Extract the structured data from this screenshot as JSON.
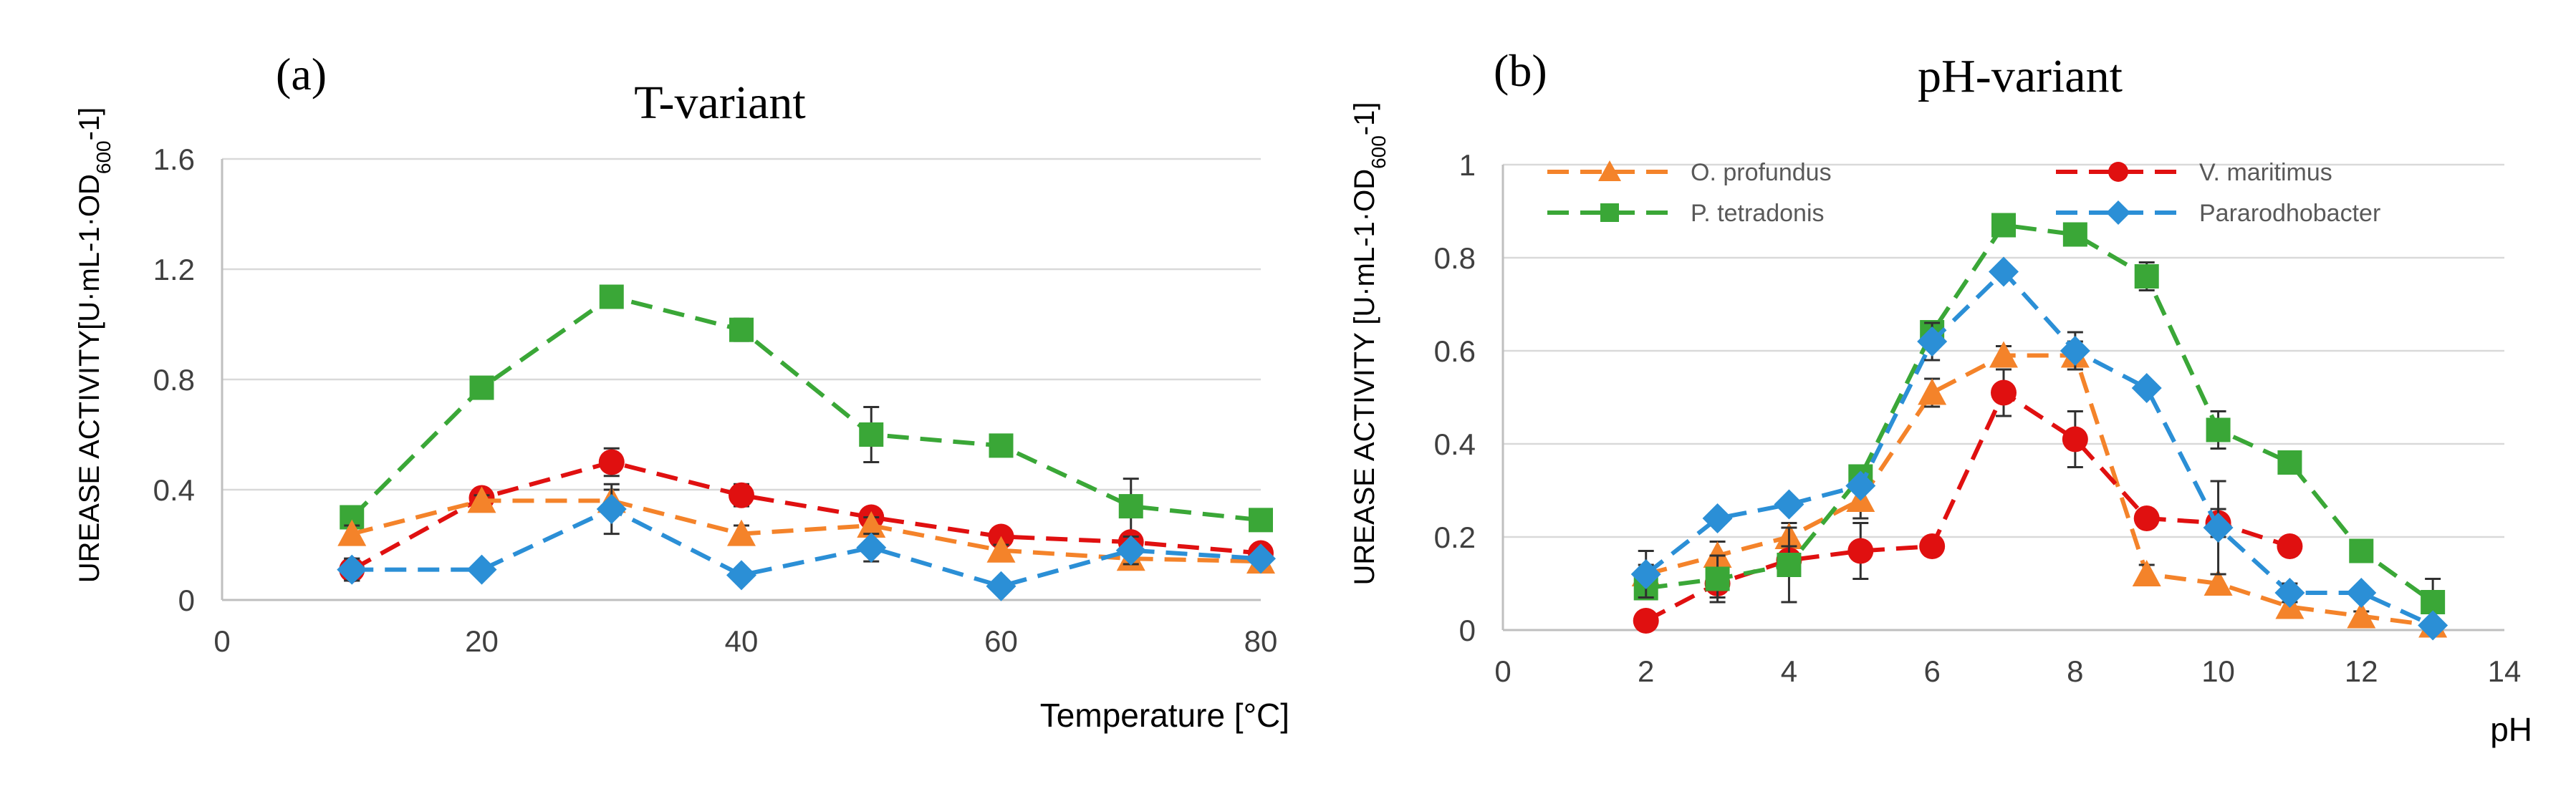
{
  "colors": {
    "o_profundus": "#f4832a",
    "v_maritimus": "#e01010",
    "p_tetradonis": "#3aa737",
    "pararodhobacter": "#2b8fd6"
  },
  "chart_data": [
    {
      "type": "line",
      "panel_label": "(a)",
      "title": "T-variant",
      "xlabel": "Temperature [°C]",
      "ylabel": "UREASE ACTIVITY[U·mL-1·OD",
      "ylabel_sub": "600",
      "ylabel_tail": "-1]",
      "xlim": [
        0,
        80
      ],
      "ylim": [
        0,
        1.6
      ],
      "xticks": [
        "0",
        "20",
        "40",
        "60",
        "80"
      ],
      "yticks": [
        "0",
        "0.4",
        "0.8",
        "1.2",
        "1.6"
      ],
      "grid": "horizontal",
      "legend": "none",
      "series": [
        {
          "name": "P. tetradonis",
          "color_key": "p_tetradonis",
          "marker": "square",
          "x": [
            10,
            20,
            30,
            40,
            50,
            60,
            70,
            80
          ],
          "y": [
            0.3,
            0.77,
            1.1,
            0.98,
            0.6,
            0.56,
            0.34,
            0.29
          ],
          "err": [
            0.03,
            0.03,
            0.04,
            0.04,
            0.1,
            0.03,
            0.1,
            0.03
          ]
        },
        {
          "name": "V. maritimus",
          "color_key": "v_maritimus",
          "marker": "circle",
          "x": [
            10,
            20,
            30,
            40,
            50,
            60,
            70,
            80
          ],
          "y": [
            0.11,
            0.37,
            0.5,
            0.38,
            0.3,
            0.23,
            0.21,
            0.17
          ],
          "err": [
            0.04,
            0.02,
            0.05,
            0.04,
            0.03,
            0.03,
            0.03,
            0.03
          ]
        },
        {
          "name": "O. profundus",
          "color_key": "o_profundus",
          "marker": "triangle",
          "x": [
            10,
            20,
            30,
            40,
            50,
            60,
            70,
            80
          ],
          "y": [
            0.24,
            0.36,
            0.36,
            0.24,
            0.27,
            0.18,
            0.15,
            0.14
          ],
          "err": [
            0.03,
            0.02,
            0.04,
            0.03,
            0.03,
            0.02,
            0.02,
            0.02
          ]
        },
        {
          "name": "Pararodhobacter",
          "color_key": "pararodhobacter",
          "marker": "diamond",
          "x": [
            10,
            20,
            30,
            40,
            50,
            60,
            70,
            80
          ],
          "y": [
            0.11,
            0.11,
            0.33,
            0.09,
            0.19,
            0.05,
            0.18,
            0.15
          ],
          "err": [
            0.04,
            0.02,
            0.09,
            0.02,
            0.05,
            0.02,
            0.05,
            0.02
          ]
        }
      ]
    },
    {
      "type": "line",
      "panel_label": "(b)",
      "title": "pH-variant",
      "xlabel": "pH",
      "ylabel": "UREASE ACTIVITY [U·mL-1·OD",
      "ylabel_sub": "600",
      "ylabel_tail": "-1]",
      "xlim": [
        0,
        14
      ],
      "ylim": [
        0,
        1
      ],
      "xticks": [
        "0",
        "2",
        "4",
        "6",
        "8",
        "10",
        "12",
        "14"
      ],
      "yticks": [
        "0",
        "0.2",
        "0.4",
        "0.6",
        "0.8",
        "1"
      ],
      "grid": "horizontal",
      "legend": "top",
      "series": [
        {
          "name": "O. profundus",
          "color_key": "o_profundus",
          "marker": "triangle",
          "x": [
            2,
            3,
            4,
            5,
            6,
            7,
            8,
            9,
            10,
            11,
            12,
            13
          ],
          "y": [
            0.12,
            0.16,
            0.2,
            0.28,
            0.51,
            0.59,
            0.59,
            0.12,
            0.1,
            0.05,
            0.03,
            0.01
          ],
          "err": [
            0.02,
            0.03,
            0.03,
            0.04,
            0.03,
            0.02,
            0.03,
            0.02,
            0.02,
            0.02,
            0.01,
            0.01
          ]
        },
        {
          "name": "V. maritimus",
          "color_key": "v_maritimus",
          "marker": "circle",
          "x": [
            2,
            3,
            4,
            5,
            6,
            7,
            8,
            9,
            10,
            11
          ],
          "y": [
            0.02,
            0.1,
            0.15,
            0.17,
            0.18,
            0.51,
            0.41,
            0.24,
            0.23,
            0.18
          ],
          "err": [
            0.01,
            0.03,
            0.03,
            0.06,
            0.02,
            0.05,
            0.06,
            0.02,
            0.03,
            0.02
          ]
        },
        {
          "name": "P. tetradonis",
          "color_key": "p_tetradonis",
          "marker": "square",
          "x": [
            2,
            3,
            4,
            5,
            6,
            7,
            8,
            9,
            10,
            11,
            12,
            13
          ],
          "y": [
            0.09,
            0.11,
            0.14,
            0.33,
            0.64,
            0.87,
            0.85,
            0.76,
            0.43,
            0.36,
            0.17,
            0.06
          ],
          "err": [
            0.02,
            0.05,
            0.08,
            0.02,
            0.02,
            0.01,
            0.01,
            0.03,
            0.04,
            0.01,
            0.01,
            0.05
          ]
        },
        {
          "name": "Pararodhobacter",
          "color_key": "pararodhobacter",
          "marker": "diamond",
          "x": [
            2,
            3,
            4,
            5,
            6,
            7,
            8,
            9,
            10,
            11,
            12,
            13
          ],
          "y": [
            0.12,
            0.24,
            0.27,
            0.31,
            0.62,
            0.77,
            0.6,
            0.52,
            0.22,
            0.08,
            0.08,
            0.01
          ],
          "err": [
            0.05,
            0.01,
            0.01,
            0.01,
            0.04,
            0.01,
            0.04,
            0.01,
            0.1,
            0.02,
            0.01,
            0.01
          ]
        }
      ]
    }
  ]
}
